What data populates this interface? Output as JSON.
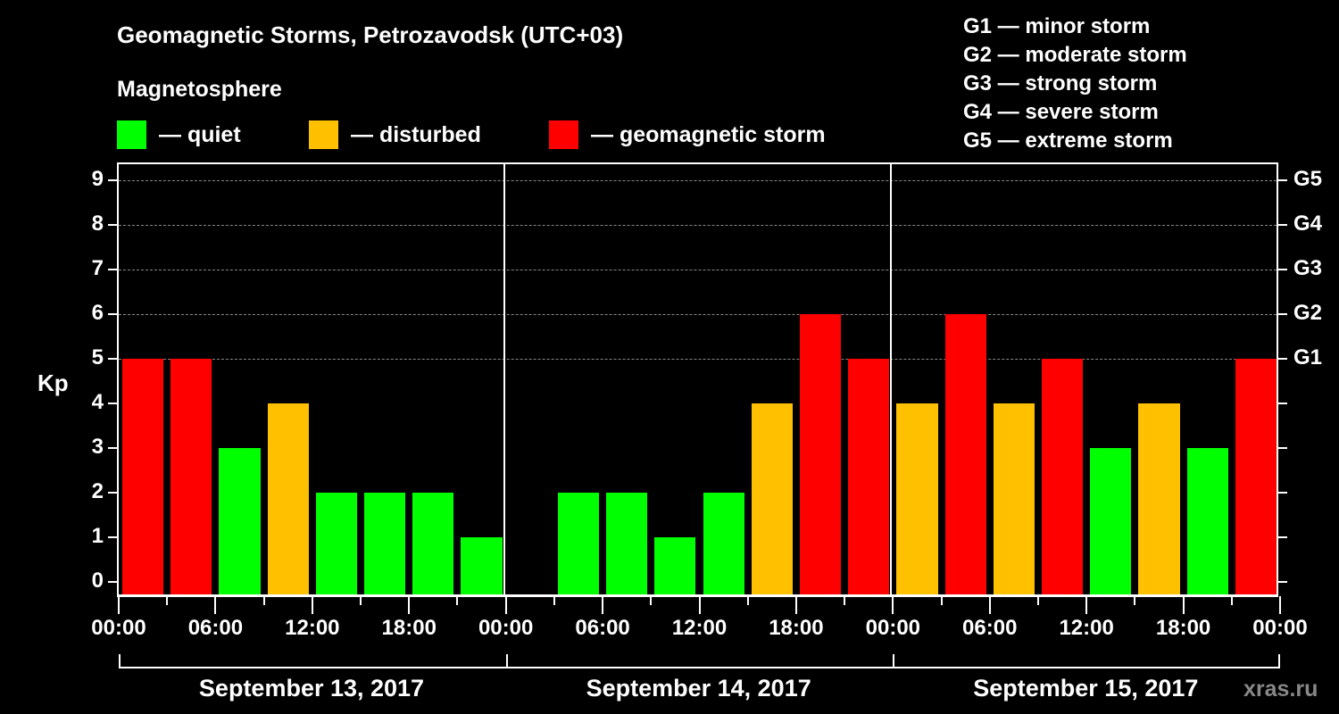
{
  "title": "Geomagnetic Storms, Petrozavodsk (UTC+03)",
  "subtitle": "Magnetosphere",
  "legend": [
    {
      "label": "— quiet",
      "color": "#00ff00"
    },
    {
      "label": "— disturbed",
      "color": "#ffc000"
    },
    {
      "label": "— geomagnetic storm",
      "color": "#ff0000"
    }
  ],
  "g_legend": [
    "G1 — minor storm",
    "G2 — moderate storm",
    "G3 — strong storm",
    "G4 — severe storm",
    "G5 — extreme storm"
  ],
  "watermark": "xras.ru",
  "chart_data": {
    "type": "bar",
    "title": "Geomagnetic Storms, Petrozavodsk (UTC+03)",
    "xlabel": "",
    "ylabel": "Kp",
    "ylim": [
      0,
      9
    ],
    "yticks": [
      0,
      1,
      2,
      3,
      4,
      5,
      6,
      7,
      8,
      9
    ],
    "right_axis_labels": {
      "5": "G1",
      "6": "G2",
      "7": "G3",
      "8": "G4",
      "9": "G5"
    },
    "grid": "dashed horizontal at 5-9",
    "x_tick_labels": [
      "00:00",
      "06:00",
      "12:00",
      "18:00",
      "00:00",
      "06:00",
      "12:00",
      "18:00",
      "00:00",
      "06:00",
      "12:00",
      "18:00",
      "00:00"
    ],
    "days": [
      "September 13, 2017",
      "September 14, 2017",
      "September 15, 2017"
    ],
    "interval_hours": 3,
    "categories": [
      "Sep13 00-03",
      "Sep13 03-06",
      "Sep13 06-09",
      "Sep13 09-12",
      "Sep13 12-15",
      "Sep13 15-18",
      "Sep13 18-21",
      "Sep13 21-24",
      "Sep14 00-03",
      "Sep14 03-06",
      "Sep14 06-09",
      "Sep14 09-12",
      "Sep14 12-15",
      "Sep14 15-18",
      "Sep14 18-21",
      "Sep14 21-24",
      "Sep15 00-03",
      "Sep15 03-06",
      "Sep15 06-09",
      "Sep15 09-12",
      "Sep15 12-15",
      "Sep15 15-18",
      "Sep15 18-21",
      "Sep15 21-24"
    ],
    "values": [
      5,
      5,
      3,
      4,
      2,
      2,
      2,
      1,
      0,
      2,
      2,
      1,
      2,
      4,
      6,
      5,
      4,
      6,
      4,
      5,
      3,
      4,
      3,
      5
    ],
    "status": [
      "storm",
      "storm",
      "quiet",
      "disturbed",
      "quiet",
      "quiet",
      "quiet",
      "quiet",
      "quiet",
      "quiet",
      "quiet",
      "quiet",
      "quiet",
      "disturbed",
      "storm",
      "storm",
      "disturbed",
      "storm",
      "disturbed",
      "storm",
      "quiet",
      "disturbed",
      "quiet",
      "storm"
    ],
    "colors": {
      "quiet": "#00ff00",
      "disturbed": "#ffc000",
      "storm": "#ff0000"
    }
  }
}
